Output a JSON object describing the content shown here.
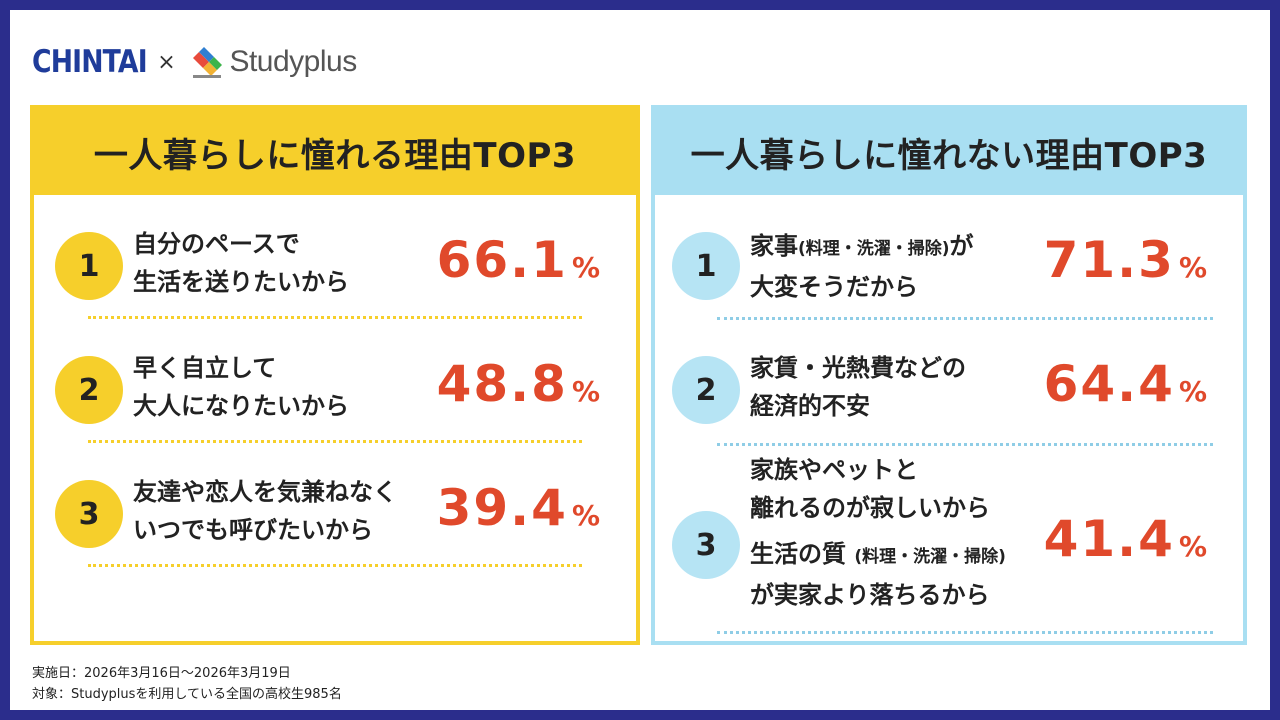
{
  "logos": {
    "chintai": "CHINTAI",
    "cross": "×",
    "studyplus": "Studyplus"
  },
  "left": {
    "title": "一人暮らしに憧れる理由TOP3",
    "items": [
      {
        "rank": "1",
        "line1": "自分のペースで",
        "line2": "生活を送りたいから",
        "value": "66.1",
        "unit": "%"
      },
      {
        "rank": "2",
        "line1": "早く自立して",
        "line2": "大人になりたいから",
        "value": "48.8",
        "unit": "%"
      },
      {
        "rank": "3",
        "line1": "友達や恋人を気兼ねなく",
        "line2": "いつでも呼びたいから",
        "value": "39.4",
        "unit": "%"
      }
    ]
  },
  "right": {
    "title": "一人暮らしに憧れない理由TOP3",
    "items": [
      {
        "rank": "1",
        "line1a": "家事",
        "line1b": "(料理・洗濯・掃除)",
        "line1c": "が",
        "line2": "大変そうだから",
        "value": "71.3",
        "unit": "%"
      },
      {
        "rank": "2",
        "line1": "家賃・光熱費などの",
        "line2": "経済的不安",
        "value": "64.4",
        "unit": "%"
      },
      {
        "rank": "3",
        "line1": "家族やペットと",
        "line2": "離れるのが寂しいから",
        "line3a": "生活の質",
        "line3b": "(料理・洗濯・掃除)",
        "line4": "が実家より落ちるから",
        "value": "41.4",
        "unit": "%"
      }
    ]
  },
  "footer": {
    "date": "実施日：2026年3月16日〜2026年3月19日",
    "target": "対象：Studyplusを利用している全国の高校生985名"
  },
  "colors": {
    "yellow": "#f6cf2b",
    "blue": "#a9dff2",
    "red": "#e0492b",
    "navy": "#2b2d8c"
  }
}
